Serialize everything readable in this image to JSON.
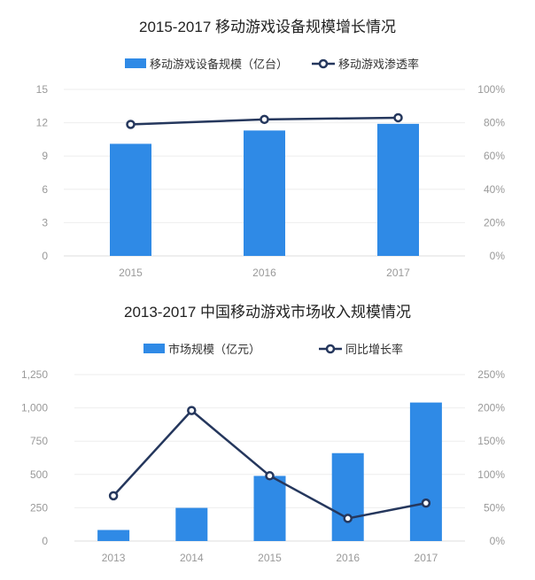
{
  "colors": {
    "bar": "#2f8ae6",
    "line": "#25375d",
    "marker_fill": "#ffffff"
  },
  "chart_data": [
    {
      "type": "bar",
      "title": "2015-2017 移动游戏设备规模增长情况",
      "categories": [
        "2015",
        "2016",
        "2017"
      ],
      "series": [
        {
          "name": "移动游戏设备规模（亿台）",
          "type": "bar",
          "axis": "left",
          "values": [
            10.1,
            11.3,
            11.9
          ]
        },
        {
          "name": "移动游戏渗透率",
          "type": "line",
          "axis": "right",
          "values": [
            79,
            82,
            83
          ]
        }
      ],
      "y_left": {
        "range": [
          0,
          15
        ],
        "ticks": [
          0,
          3,
          6,
          9,
          12,
          15
        ],
        "tick_labels": [
          "0",
          "3",
          "6",
          "9",
          "12",
          "15"
        ]
      },
      "y_right": {
        "range": [
          0,
          100
        ],
        "ticks": [
          0,
          20,
          40,
          60,
          80,
          100
        ],
        "tick_labels": [
          "0%",
          "20%",
          "40%",
          "60%",
          "80%",
          "100%"
        ]
      },
      "grid": true,
      "legend_position": "top-center"
    },
    {
      "type": "bar",
      "title": "2013-2017 中国移动游戏市场收入规模情况",
      "categories": [
        "2013",
        "2014",
        "2015",
        "2016",
        "2017"
      ],
      "series": [
        {
          "name": "市场规模（亿元）",
          "type": "bar",
          "axis": "left",
          "values": [
            83,
            249,
            489,
            660,
            1040
          ]
        },
        {
          "name": "同比增长率",
          "type": "line",
          "axis": "right",
          "values": [
            68,
            196,
            98,
            34,
            57
          ]
        }
      ],
      "y_left": {
        "range": [
          0,
          1250
        ],
        "ticks": [
          0,
          250,
          500,
          750,
          1000,
          1250
        ],
        "tick_labels": [
          "0",
          "250",
          "500",
          "750",
          "1,000",
          "1,250"
        ]
      },
      "y_right": {
        "range": [
          0,
          250
        ],
        "ticks": [
          0,
          50,
          100,
          150,
          200,
          250
        ],
        "tick_labels": [
          "0%",
          "50%",
          "100%",
          "150%",
          "200%",
          "250%"
        ]
      },
      "grid": true,
      "legend_position": "top-center"
    }
  ]
}
